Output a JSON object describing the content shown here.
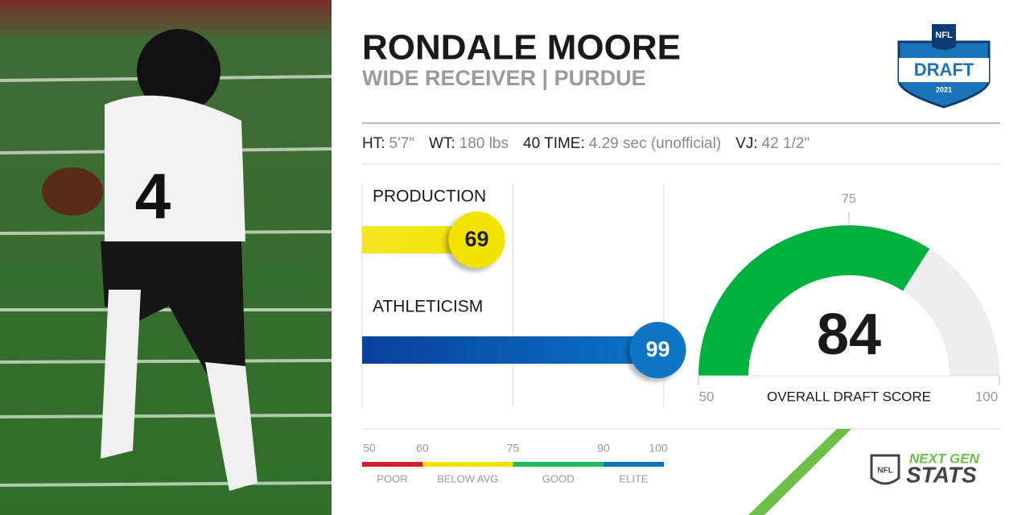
{
  "header": {
    "name": "RONDALE MOORE",
    "position": "WIDE RECEIVER | PURDUE"
  },
  "logo": {
    "league": "NFL",
    "event": "DRAFT",
    "year": "2021"
  },
  "measurables": [
    {
      "label": "HT:",
      "value": "5'7\""
    },
    {
      "label": "WT:",
      "value": "180 lbs"
    },
    {
      "label": "40 TIME:",
      "value": "4.29 sec (unofficial)"
    },
    {
      "label": "VJ:",
      "value": "42 1/2\""
    }
  ],
  "scores": {
    "range": [
      50,
      100
    ],
    "gridlines": [
      75,
      100
    ],
    "items": [
      {
        "label": "PRODUCTION",
        "value": 69,
        "color": "#f2e200"
      },
      {
        "label": "ATHLETICISM",
        "value": 99,
        "color": "#0a74c4"
      }
    ]
  },
  "overall": {
    "label": "OVERALL DRAFT SCORE",
    "value": 84,
    "range": [
      50,
      100
    ],
    "ticks": [
      50,
      75,
      100
    ],
    "color": "#00b140"
  },
  "scale": {
    "ticks": [
      50,
      60,
      75,
      90,
      100
    ],
    "bands": [
      {
        "label": "POOR",
        "color": "#d0202a"
      },
      {
        "label": "BELOW AVG",
        "color": "#f2e200"
      },
      {
        "label": "GOOD",
        "color": "#1fba5a"
      },
      {
        "label": "ELITE",
        "color": "#0a74c4"
      }
    ]
  },
  "brand": {
    "league": "NFL",
    "line1": "NEXT GEN",
    "line2": "STATS"
  }
}
